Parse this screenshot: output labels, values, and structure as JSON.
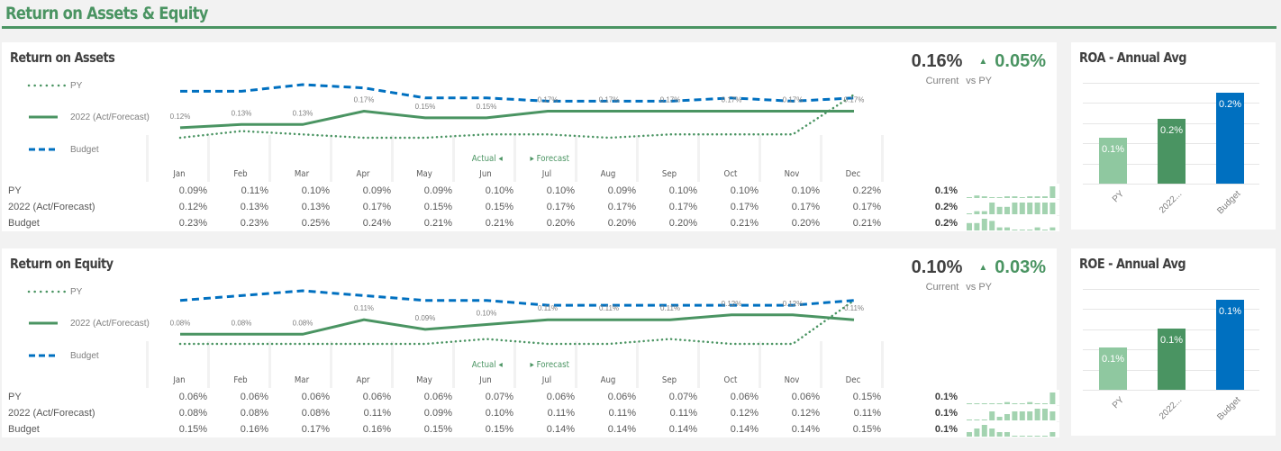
{
  "page": {
    "title": "Return on Assets & Equity"
  },
  "colors": {
    "accent_green": "#4a9462",
    "py_green": "#4a9462",
    "budget_blue": "#0070c0",
    "py_bar": "#8fc8a0",
    "act_bar": "#4a9462",
    "budget_bar": "#0070c0",
    "spark": "#a3d3b0"
  },
  "months": [
    "Jan",
    "Feb",
    "Mar",
    "Apr",
    "May",
    "Jun",
    "Jul",
    "Aug",
    "Sep",
    "Oct",
    "Nov",
    "Dec"
  ],
  "legend": {
    "py": "PY",
    "act": "2022 (Act/Forecast)",
    "budget": "Budget"
  },
  "markers": {
    "actual": "Actual ◂",
    "forecast": "▸ Forecast"
  },
  "roa": {
    "title": "Return on Assets",
    "kpi": {
      "current": "0.16%",
      "delta": "0.05%",
      "delta_arrow": "▲",
      "current_label": "Current",
      "vs_label": "vs PY"
    },
    "rows": [
      {
        "label": "PY",
        "values": [
          "0.09%",
          "0.11%",
          "0.10%",
          "0.09%",
          "0.09%",
          "0.10%",
          "0.10%",
          "0.09%",
          "0.10%",
          "0.10%",
          "0.10%",
          "0.22%"
        ],
        "total": "0.1%"
      },
      {
        "label": "2022 (Act/Forecast)",
        "values": [
          "0.12%",
          "0.13%",
          "0.13%",
          "0.17%",
          "0.15%",
          "0.15%",
          "0.17%",
          "0.17%",
          "0.17%",
          "0.17%",
          "0.17%",
          "0.17%"
        ],
        "total": "0.2%"
      },
      {
        "label": "Budget",
        "values": [
          "0.23%",
          "0.23%",
          "0.25%",
          "0.24%",
          "0.21%",
          "0.21%",
          "0.20%",
          "0.20%",
          "0.20%",
          "0.21%",
          "0.20%",
          "0.21%"
        ],
        "total": "0.2%"
      }
    ]
  },
  "roe": {
    "title": "Return on Equity",
    "kpi": {
      "current": "0.10%",
      "delta": "0.03%",
      "delta_arrow": "▲",
      "current_label": "Current",
      "vs_label": "vs PY"
    },
    "rows": [
      {
        "label": "PY",
        "values": [
          "0.06%",
          "0.06%",
          "0.06%",
          "0.06%",
          "0.06%",
          "0.07%",
          "0.06%",
          "0.06%",
          "0.07%",
          "0.06%",
          "0.06%",
          "0.15%"
        ],
        "total": "0.1%"
      },
      {
        "label": "2022 (Act/Forecast)",
        "values": [
          "0.08%",
          "0.08%",
          "0.08%",
          "0.11%",
          "0.09%",
          "0.10%",
          "0.11%",
          "0.11%",
          "0.11%",
          "0.12%",
          "0.12%",
          "0.11%"
        ],
        "total": "0.1%"
      },
      {
        "label": "Budget",
        "values": [
          "0.15%",
          "0.16%",
          "0.17%",
          "0.16%",
          "0.15%",
          "0.15%",
          "0.14%",
          "0.14%",
          "0.14%",
          "0.14%",
          "0.14%",
          "0.15%"
        ],
        "total": "0.1%"
      }
    ]
  },
  "roa_avg": {
    "title": "ROA - Annual Avg",
    "bars": [
      {
        "category": "PY",
        "label": "0.1%",
        "value": 0.11
      },
      {
        "category": "2022...",
        "label": "0.2%",
        "value": 0.155
      },
      {
        "category": "Budget",
        "label": "0.2%",
        "value": 0.216
      }
    ]
  },
  "roe_avg": {
    "title": "ROE - Annual Avg",
    "bars": [
      {
        "category": "PY",
        "label": "0.1%",
        "value": 0.07
      },
      {
        "category": "2022...",
        "label": "0.1%",
        "value": 0.1
      },
      {
        "category": "Budget",
        "label": "0.1%",
        "value": 0.148
      }
    ]
  },
  "chart_data": [
    {
      "type": "line",
      "title": "Return on Assets",
      "x": [
        "Jan",
        "Feb",
        "Mar",
        "Apr",
        "May",
        "Jun",
        "Jul",
        "Aug",
        "Sep",
        "Oct",
        "Nov",
        "Dec"
      ],
      "series": [
        {
          "name": "PY",
          "values": [
            0.09,
            0.11,
            0.1,
            0.09,
            0.09,
            0.1,
            0.1,
            0.09,
            0.1,
            0.1,
            0.1,
            0.22
          ]
        },
        {
          "name": "2022 (Act/Forecast)",
          "values": [
            0.12,
            0.13,
            0.13,
            0.17,
            0.15,
            0.15,
            0.17,
            0.17,
            0.17,
            0.17,
            0.17,
            0.17
          ]
        },
        {
          "name": "Budget",
          "values": [
            0.23,
            0.23,
            0.25,
            0.24,
            0.21,
            0.21,
            0.2,
            0.2,
            0.2,
            0.21,
            0.2,
            0.21
          ]
        }
      ],
      "ylabel": "%",
      "legend_position": "left"
    },
    {
      "type": "line",
      "title": "Return on Equity",
      "x": [
        "Jan",
        "Feb",
        "Mar",
        "Apr",
        "May",
        "Jun",
        "Jul",
        "Aug",
        "Sep",
        "Oct",
        "Nov",
        "Dec"
      ],
      "series": [
        {
          "name": "PY",
          "values": [
            0.06,
            0.06,
            0.06,
            0.06,
            0.06,
            0.07,
            0.06,
            0.06,
            0.07,
            0.06,
            0.06,
            0.15
          ]
        },
        {
          "name": "2022 (Act/Forecast)",
          "values": [
            0.08,
            0.08,
            0.08,
            0.11,
            0.09,
            0.1,
            0.11,
            0.11,
            0.11,
            0.12,
            0.12,
            0.11
          ]
        },
        {
          "name": "Budget",
          "values": [
            0.15,
            0.16,
            0.17,
            0.16,
            0.15,
            0.15,
            0.14,
            0.14,
            0.14,
            0.14,
            0.14,
            0.15
          ]
        }
      ],
      "ylabel": "%",
      "legend_position": "left"
    },
    {
      "type": "bar",
      "title": "ROA - Annual Avg",
      "categories": [
        "PY",
        "2022...",
        "Budget"
      ],
      "values": [
        0.1,
        0.2,
        0.2
      ],
      "data_labels": [
        "0.1%",
        "0.2%",
        "0.2%"
      ]
    },
    {
      "type": "bar",
      "title": "ROE - Annual Avg",
      "categories": [
        "PY",
        "2022...",
        "Budget"
      ],
      "values": [
        0.1,
        0.1,
        0.1
      ],
      "data_labels": [
        "0.1%",
        "0.1%",
        "0.1%"
      ]
    }
  ]
}
